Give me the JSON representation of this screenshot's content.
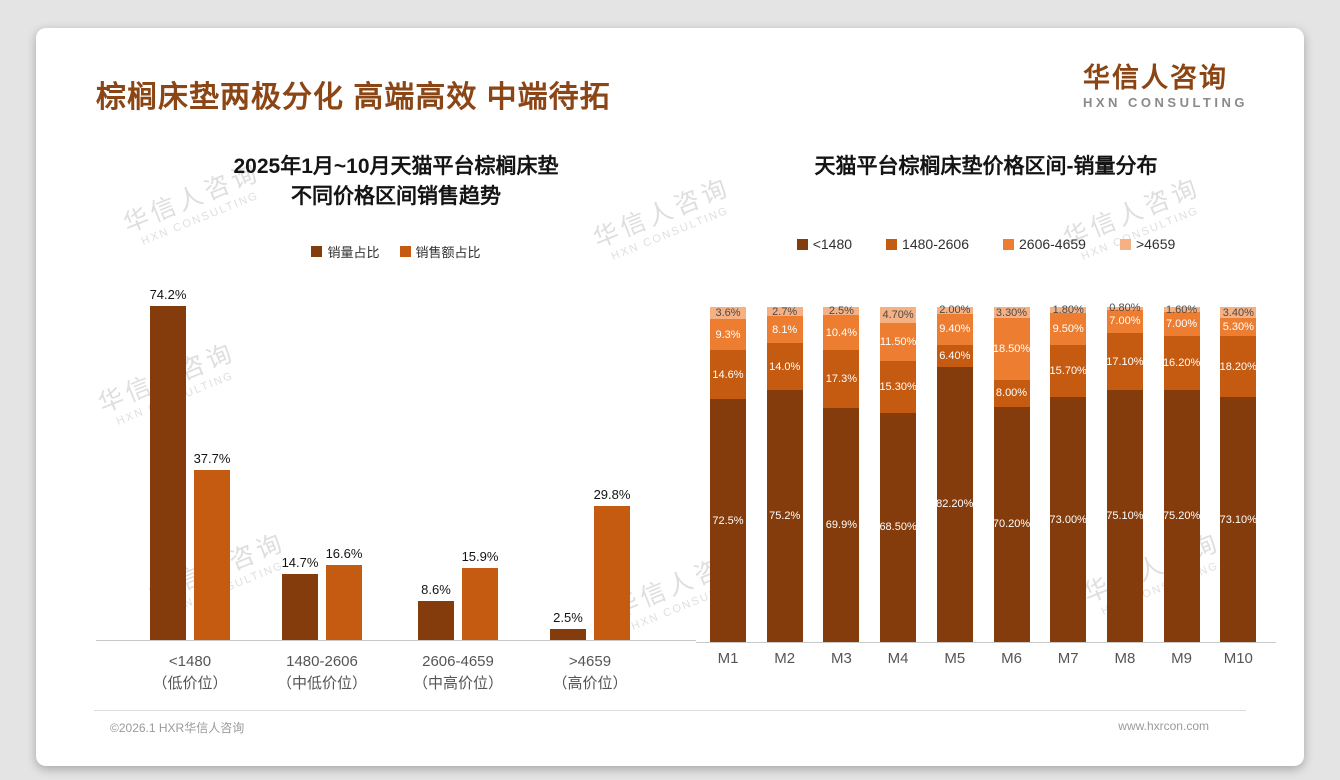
{
  "header": {
    "title": "棕榈床垫两极分化 高端高效 中端待拓",
    "logo": {
      "name": "华信人咨询",
      "sub": "HXN CONSULTING"
    }
  },
  "watermark": {
    "line1": "华信人咨询",
    "line2": "HXN CONSULTING"
  },
  "footer": {
    "left": "©2026.1 HXR华信人咨询",
    "right": "www.hxrcon.com"
  },
  "colors": {
    "title_brown": "#8C4616",
    "logo_brown": "#8B4513",
    "logo_gray": "#8A8A8A",
    "dark_brown": "#843C0C",
    "orange": "#C55A11",
    "light_orange": "#ED7D31",
    "peach": "#F5B183",
    "axis_gray": "#C9C9C9",
    "label_gray": "#595959"
  },
  "chart_data": [
    {
      "type": "bar",
      "title_line1": "2025年1月~10月天猫平台棕榈床垫",
      "title_line2": "不同价格区间销售趋势",
      "categories": [
        "<1480",
        "1480-2606",
        "2606-4659",
        ">4659"
      ],
      "category_sub": [
        "（低价位）",
        "（中低价位）",
        "（中高价位）",
        "（高价位）"
      ],
      "series": [
        {
          "name": "销量占比",
          "color": "#843C0C",
          "values": [
            74.2,
            14.7,
            8.6,
            2.5
          ],
          "labels": [
            "74.2%",
            "14.7%",
            "8.6%",
            "2.5%"
          ]
        },
        {
          "name": "销售额占比",
          "color": "#C55A11",
          "values": [
            37.7,
            16.6,
            15.9,
            29.8
          ],
          "labels": [
            "37.7%",
            "16.6%",
            "15.9%",
            "29.8%"
          ]
        }
      ],
      "xlabel": "",
      "ylabel": "",
      "ylim": [
        0,
        80
      ],
      "grid": false,
      "legend_position": "top",
      "value_labels": "percent"
    },
    {
      "type": "bar",
      "subtype": "stacked-100-percent",
      "title": "天猫平台棕榈床垫价格区间-销量分布",
      "categories": [
        "M1",
        "M2",
        "M3",
        "M4",
        "M5",
        "M6",
        "M7",
        "M8",
        "M9",
        "M10"
      ],
      "series": [
        {
          "name": "<1480",
          "color": "#843C0C",
          "values": [
            72.5,
            75.2,
            69.9,
            68.5,
            82.2,
            70.2,
            73.0,
            75.1,
            75.2,
            73.1
          ],
          "labels": [
            "72.5%",
            "75.2%",
            "69.9%",
            "68.50%",
            "82.20%",
            "70.20%",
            "73.00%",
            "75.10%",
            "75.20%",
            "73.10%"
          ]
        },
        {
          "name": "1480-2606",
          "color": "#C55A11",
          "values": [
            14.6,
            14.0,
            17.3,
            15.3,
            6.4,
            8.0,
            15.7,
            17.1,
            16.2,
            18.2
          ],
          "labels": [
            "14.6%",
            "14.0%",
            "17.3%",
            "15.30%",
            "6.40%",
            "8.00%",
            "15.70%",
            "17.10%",
            "16.20%",
            "18.20%"
          ]
        },
        {
          "name": "2606-4659",
          "color": "#ED7D31",
          "values": [
            9.3,
            8.1,
            10.4,
            11.5,
            9.4,
            18.5,
            9.5,
            7.0,
            7.0,
            5.3
          ],
          "labels": [
            "9.3%",
            "8.1%",
            "10.4%",
            "11.50%",
            "9.40%",
            "18.50%",
            "9.50%",
            "7.00%",
            "7.00%",
            "5.30%"
          ]
        },
        {
          "name": ">4659",
          "color": "#F5B183",
          "values": [
            3.6,
            2.7,
            2.5,
            4.7,
            2.0,
            3.3,
            1.8,
            0.8,
            1.6,
            3.4
          ],
          "labels": [
            "3.6%",
            "2.7%",
            "2.5%",
            "4.70%",
            "2.00%",
            "3.30%",
            "1.80%",
            "0.80%",
            "1.60%",
            "3.40%"
          ]
        }
      ],
      "xlabel": "",
      "ylabel": "",
      "ylim": [
        0,
        100
      ],
      "grid": false,
      "legend_position": "top",
      "value_labels": "percent"
    }
  ]
}
